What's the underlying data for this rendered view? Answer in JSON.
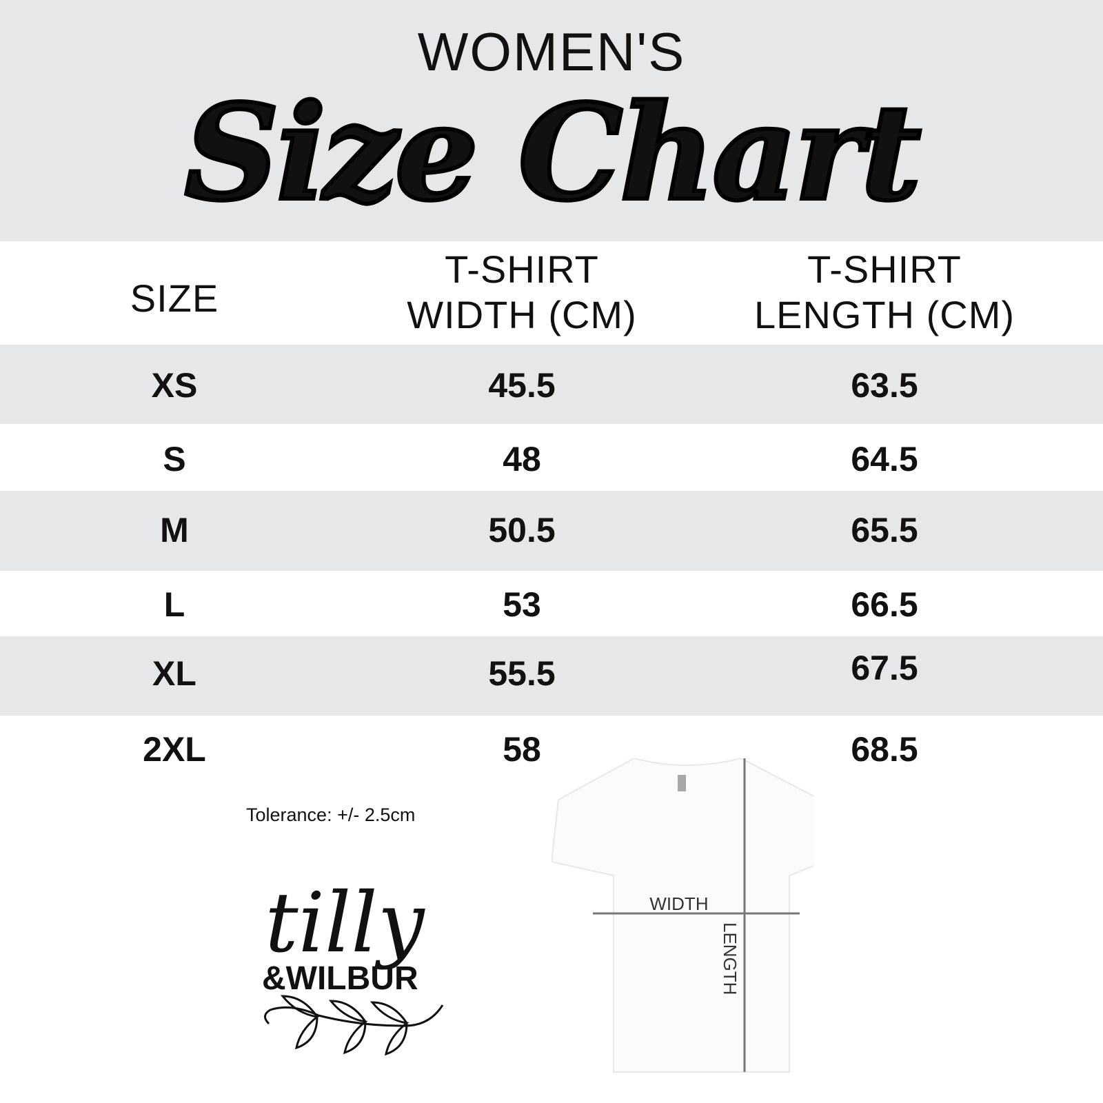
{
  "header": {
    "subtitle": "WOMEN'S",
    "title": "Size Chart"
  },
  "table": {
    "columns": [
      "SIZE",
      "T-SHIRT\nWIDTH (CM)",
      "T-SHIRT\nLENGTH (CM)"
    ],
    "columns_lines": [
      [
        "SIZE"
      ],
      [
        "T-SHIRT",
        "WIDTH (CM)"
      ],
      [
        "T-SHIRT",
        "LENGTH (CM)"
      ]
    ],
    "rows": [
      {
        "size": "XS",
        "width": "45.5",
        "length": "63.5"
      },
      {
        "size": "S",
        "width": "48",
        "length": "64.5"
      },
      {
        "size": "M",
        "width": "50.5",
        "length": "65.5"
      },
      {
        "size": "L",
        "width": "53",
        "length": "66.5"
      },
      {
        "size": "XL",
        "width": "55.5",
        "length": "67.5"
      },
      {
        "size": "2XL",
        "width": "58",
        "length": "68.5"
      }
    ]
  },
  "tolerance": "Tolerance: +/- 2.5cm",
  "diagram": {
    "width_label": "WIDTH",
    "length_label": "LENGTH"
  },
  "logo": {
    "line1": "tilly",
    "line2": "&WILBUR"
  },
  "colors": {
    "band": "#e6e7e8",
    "text": "#111111",
    "measure_line": "#777777"
  }
}
